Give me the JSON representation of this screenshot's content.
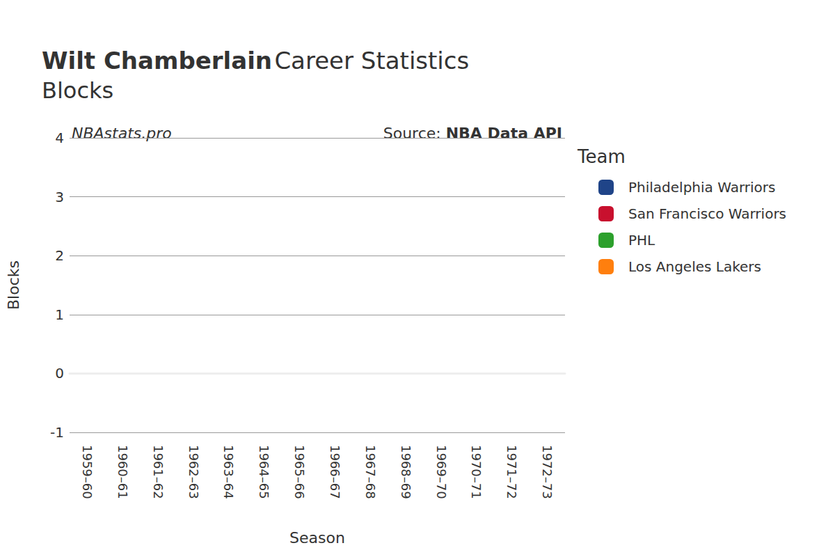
{
  "chart_data": {
    "type": "bar",
    "title": "Wilt Chamberlain Career Statistics",
    "subtitle": "Blocks",
    "annotations": [
      "NBAstats.pro",
      "Source: NBA Data API"
    ],
    "x_label": "Season",
    "y_label": "Blocks",
    "legend_title": "Team",
    "categories": [
      "1959–60",
      "1960–61",
      "1961–62",
      "1962–63",
      "1963–64",
      "1964–65",
      "1965–66",
      "1966–67",
      "1967–68",
      "1968–69",
      "1969–70",
      "1970–71",
      "1971–72",
      "1972–73"
    ],
    "series": [
      {
        "name": "Philadelphia Warriors",
        "color": "#1f4488",
        "values": [
          null,
          null,
          null,
          null,
          null,
          null,
          null,
          null,
          null,
          null,
          null,
          null,
          null,
          null
        ]
      },
      {
        "name": "San Francisco Warriors",
        "color": "#c8102e",
        "values": [
          null,
          null,
          null,
          null,
          null,
          null,
          null,
          null,
          null,
          null,
          null,
          null,
          null,
          null
        ]
      },
      {
        "name": "PHL",
        "color": "#2ca02c",
        "values": [
          null,
          null,
          null,
          null,
          null,
          null,
          null,
          null,
          null,
          null,
          null,
          null,
          null,
          null
        ]
      },
      {
        "name": "Los Angeles Lakers",
        "color": "#ff7f0e",
        "values": [
          null,
          null,
          null,
          null,
          null,
          null,
          null,
          null,
          null,
          null,
          null,
          null,
          null,
          null
        ]
      }
    ],
    "ylim": [
      -1,
      4
    ],
    "yticks": [
      -1,
      0,
      1,
      2,
      3,
      4
    ],
    "grid": true,
    "legend": "right"
  }
}
